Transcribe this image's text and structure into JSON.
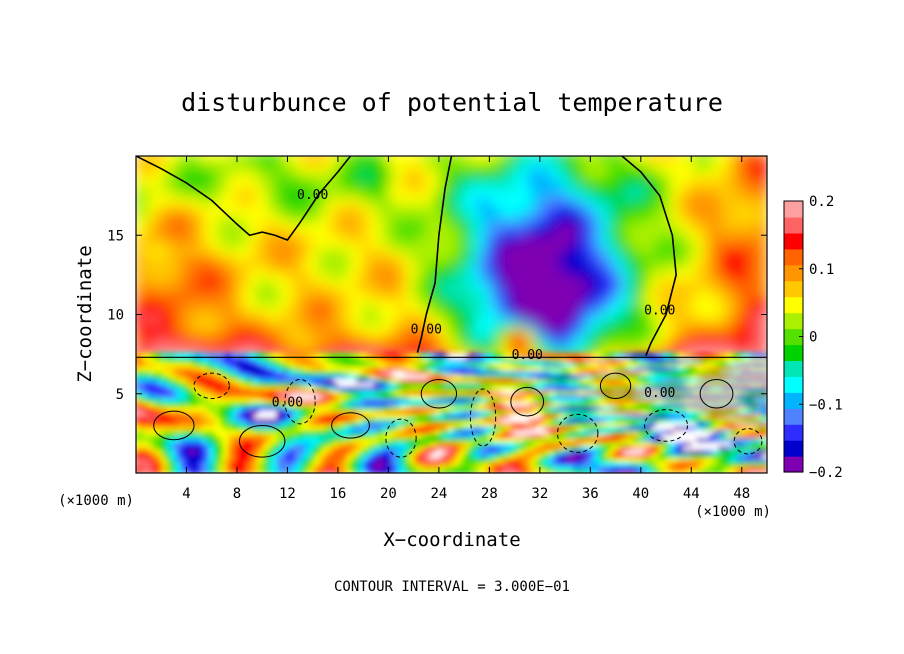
{
  "chart_data": {
    "type": "heatmap",
    "title": "disturbunce of potential temperature",
    "xlabel": "X−coordinate",
    "ylabel": "Z−coordinate",
    "x_unit_left": "(×1000 m)",
    "x_unit_right": "(×1000 m)",
    "xlim": [
      0,
      50
    ],
    "ylim": [
      0,
      20
    ],
    "x_ticks": [
      "4",
      "8",
      "12",
      "16",
      "20",
      "24",
      "28",
      "32",
      "36",
      "40",
      "44",
      "48"
    ],
    "x_tick_values": [
      4,
      8,
      12,
      16,
      20,
      24,
      28,
      32,
      36,
      40,
      44,
      48
    ],
    "y_ticks": [
      "5",
      "10",
      "15"
    ],
    "y_tick_values": [
      5,
      10,
      15
    ],
    "colorbar": {
      "min": -0.2,
      "max": 0.2,
      "tick_labels": [
        "0.2",
        "0.1",
        "0",
        "−0.1",
        "−0.2"
      ],
      "tick_values": [
        0.2,
        0.1,
        0,
        -0.1,
        -0.2
      ],
      "colors": [
        "#7f00b2",
        "#0000cd",
        "#2d2dff",
        "#4f82ff",
        "#00b4ff",
        "#00ffff",
        "#00e6b4",
        "#00d200",
        "#55e100",
        "#aaf000",
        "#ffff00",
        "#ffc800",
        "#ff9600",
        "#ff6400",
        "#ff0000",
        "#ff6464",
        "#ffa0a0"
      ]
    },
    "contour_labels": [
      {
        "x": 14.0,
        "z": 17.3,
        "text": "0.00"
      },
      {
        "x": 23.0,
        "z": 8.8,
        "text": "0.00"
      },
      {
        "x": 41.5,
        "z": 10.0,
        "text": "0.00"
      },
      {
        "x": 31.0,
        "z": 7.2,
        "text": "0.00"
      },
      {
        "x": 12.0,
        "z": 4.2,
        "text": "0.00"
      },
      {
        "x": 41.5,
        "z": 4.8,
        "text": "0.00"
      }
    ],
    "contour_interval_note": "CONTOUR INTERVAL = 3.000E−01"
  }
}
